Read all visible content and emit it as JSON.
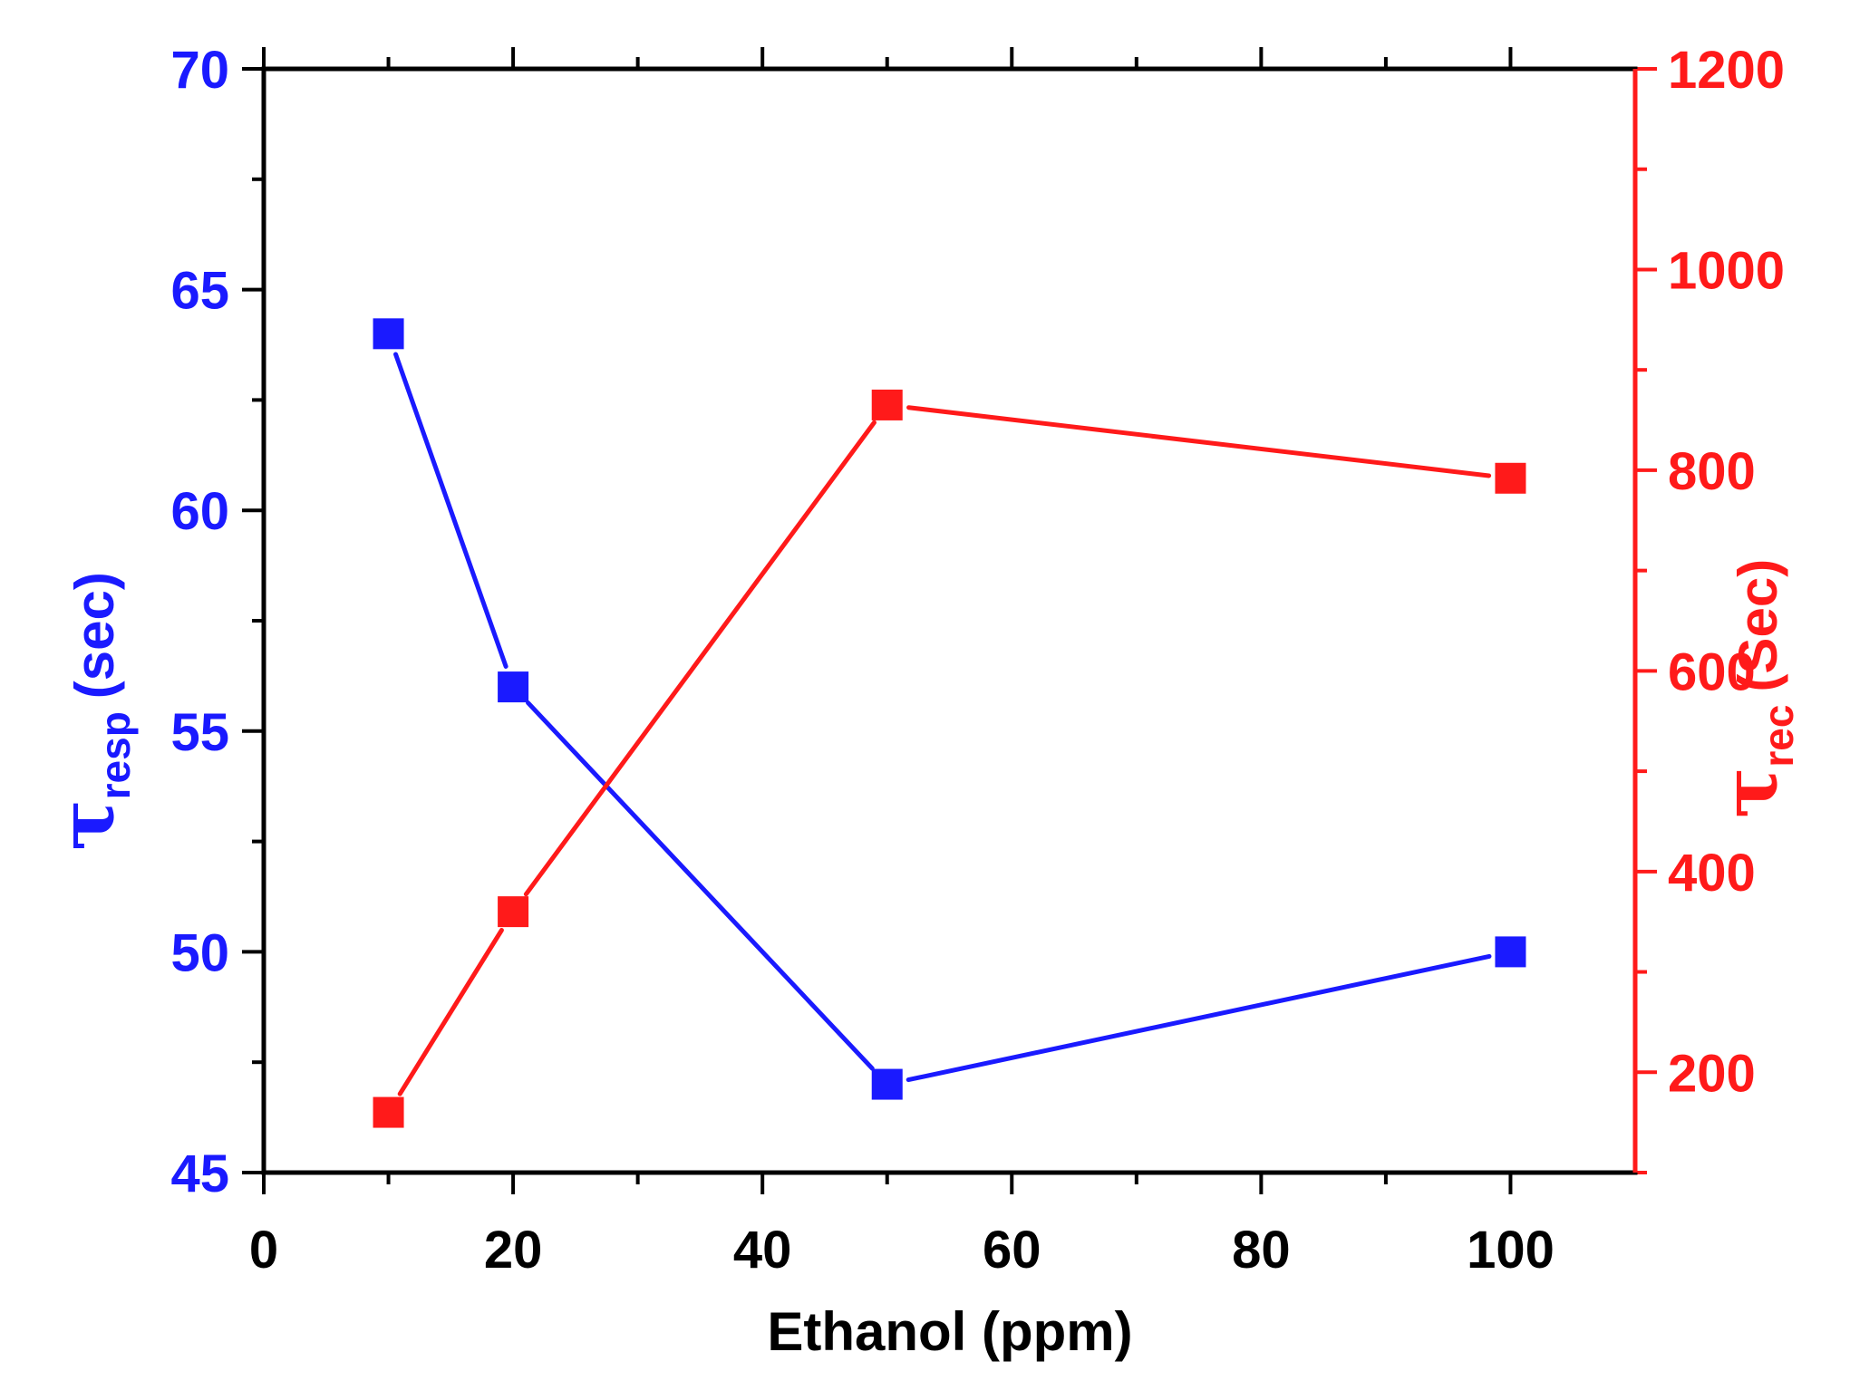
{
  "chart_data": {
    "type": "line",
    "title": "",
    "x": [
      10,
      20,
      50,
      100
    ],
    "xlabel": "Ethanol (ppm)",
    "xlim": [
      0,
      110
    ],
    "xticks": [
      0,
      20,
      40,
      60,
      80,
      100
    ],
    "xtick_labels": [
      "0",
      "20",
      "40",
      "60",
      "80",
      "100"
    ],
    "y_left": {
      "label_symbol": "τ",
      "label_sub": "resp",
      "label_unit": "(sec)",
      "lim": [
        45,
        70
      ],
      "ticks": [
        45,
        50,
        55,
        60,
        65,
        70
      ],
      "tick_labels": [
        "45",
        "50",
        "55",
        "60",
        "65",
        "70"
      ],
      "color": "#1a1aff"
    },
    "y_right": {
      "label_symbol": "τ",
      "label_sub": "rec",
      "label_unit": "(Sec)",
      "lim": [
        100,
        1200
      ],
      "ticks": [
        200,
        400,
        600,
        800,
        1000,
        1200
      ],
      "tick_labels": [
        "200",
        "400",
        "600",
        "800",
        "1000",
        "1200"
      ],
      "color": "#ff1a1a"
    },
    "series": [
      {
        "name": "τ_resp",
        "axis": "left",
        "color": "#1a1aff",
        "marker": "square",
        "values": [
          64,
          56,
          47,
          50
        ]
      },
      {
        "name": "τ_rec",
        "axis": "right",
        "color": "#ff1a1a",
        "marker": "square",
        "values": [
          160,
          360,
          865,
          792
        ]
      }
    ],
    "grid": false,
    "legend": "none"
  }
}
